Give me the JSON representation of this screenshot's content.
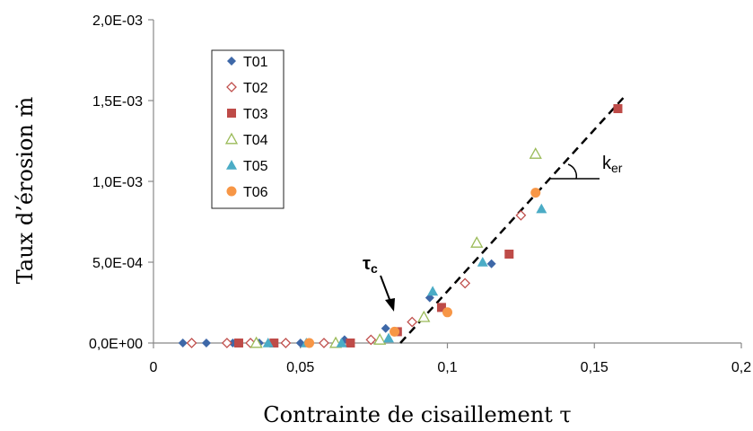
{
  "chart_data": {
    "type": "scatter",
    "title": "",
    "xlabel": "Contrainte de cisaillement τ",
    "ylabel": "Taux d’érosion ṁ",
    "xlim": [
      0,
      0.2
    ],
    "ylim": [
      0,
      0.002
    ],
    "x_ticks": [
      0,
      0.05,
      0.1,
      0.15,
      0.2
    ],
    "x_tick_labels": [
      "0",
      "0,05",
      "0,1",
      "0,15",
      "0,2"
    ],
    "y_ticks": [
      0,
      0.0005,
      0.001,
      0.0015,
      0.002
    ],
    "y_tick_labels": [
      "0,0E+00",
      "5,0E-04",
      "1,0E-03",
      "1,5E-03",
      "2,0E-03"
    ],
    "grid": false,
    "legend_position": "top-left",
    "series": [
      {
        "name": "T01",
        "marker": "diamond-filled",
        "color": "#3e68a8",
        "x": [
          0.01,
          0.018,
          0.027,
          0.036,
          0.05,
          0.065,
          0.079,
          0.094,
          0.115
        ],
        "y": [
          0,
          0,
          0,
          0,
          0,
          2e-05,
          9e-05,
          0.00028,
          0.00049
        ]
      },
      {
        "name": "T02",
        "marker": "diamond-open",
        "color": "#c0504d",
        "x": [
          0.013,
          0.025,
          0.033,
          0.045,
          0.058,
          0.074,
          0.088,
          0.106,
          0.125
        ],
        "y": [
          0,
          0,
          0,
          0,
          0,
          2e-05,
          0.00013,
          0.00037,
          0.00079
        ]
      },
      {
        "name": "T03",
        "marker": "square-filled",
        "color": "#be4b48",
        "x": [
          0.029,
          0.041,
          0.067,
          0.083,
          0.098,
          0.121,
          0.158
        ],
        "y": [
          0,
          0,
          0,
          7e-05,
          0.00022,
          0.00055,
          0.00145
        ]
      },
      {
        "name": "T04",
        "marker": "triangle-open",
        "color": "#9bbb59",
        "x": [
          0.035,
          0.062,
          0.077,
          0.092,
          0.11,
          0.13
        ],
        "y": [
          0,
          0,
          2e-05,
          0.00016,
          0.00062,
          0.00117
        ]
      },
      {
        "name": "T05",
        "marker": "triangle-filled",
        "color": "#4bacc6",
        "x": [
          0.039,
          0.052,
          0.064,
          0.08,
          0.095,
          0.112,
          0.132
        ],
        "y": [
          0,
          0,
          0,
          3e-05,
          0.00032,
          0.0005,
          0.00083
        ]
      },
      {
        "name": "T06",
        "marker": "circle-filled",
        "color": "#f79646",
        "x": [
          0.053,
          0.082,
          0.1,
          0.13
        ],
        "y": [
          0,
          7e-05,
          0.00019,
          0.00093
        ]
      }
    ],
    "fit_line": {
      "x": [
        0.084,
        0.161
      ],
      "y": [
        0,
        0.00154
      ]
    },
    "annotations": [
      {
        "text": "τ",
        "subscript": "c"
      },
      {
        "text": "k",
        "subscript": "er"
      }
    ]
  }
}
